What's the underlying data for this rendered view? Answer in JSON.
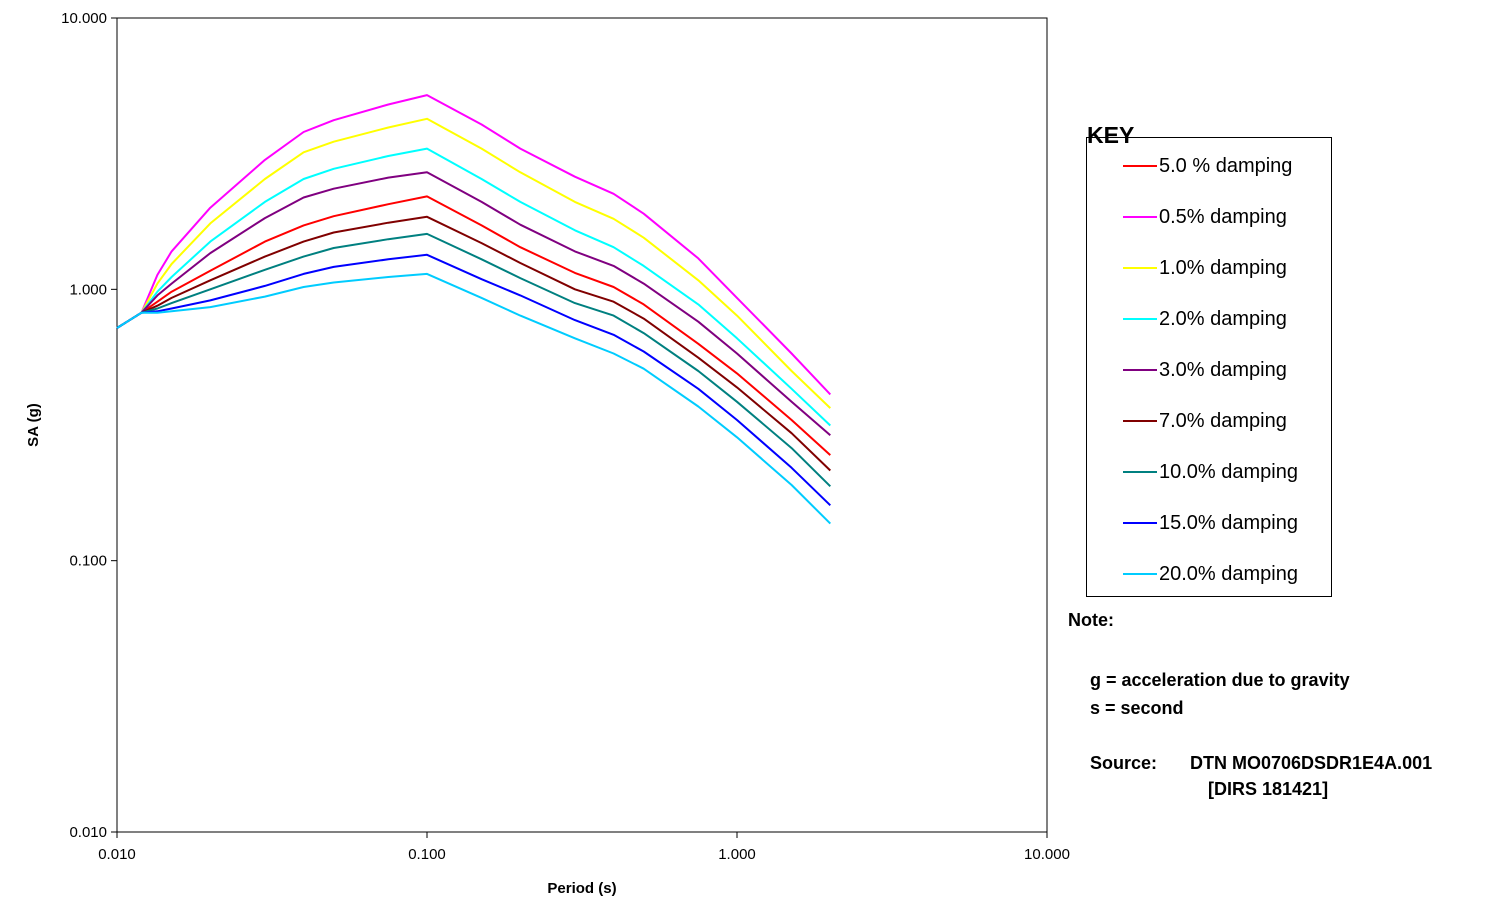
{
  "chart_data": {
    "type": "line",
    "xlabel": "Period (s)",
    "ylabel": "SA (g)",
    "xscale": "log",
    "yscale": "log",
    "xlim": [
      0.01,
      10
    ],
    "ylim": [
      0.01,
      10
    ],
    "x_ticks": [
      "0.010",
      "0.100",
      "1.000",
      "10.000"
    ],
    "y_ticks": [
      "0.010",
      "0.100",
      "1.000",
      "10.000"
    ],
    "grid": false,
    "legend_title": "KEY",
    "legend_position": "right",
    "x": [
      0.01,
      0.012,
      0.0135,
      0.015,
      0.02,
      0.03,
      0.04,
      0.05,
      0.075,
      0.1,
      0.15,
      0.2,
      0.3,
      0.4,
      0.5,
      0.75,
      1.0,
      1.5,
      2.0
    ],
    "series": [
      {
        "name": "5.0 % damping",
        "color": "#ff0000",
        "values": [
          0.72,
          0.82,
          0.9,
          0.98,
          1.17,
          1.5,
          1.72,
          1.86,
          2.06,
          2.2,
          1.72,
          1.43,
          1.15,
          1.02,
          0.88,
          0.63,
          0.49,
          0.33,
          0.245
        ]
      },
      {
        "name": "0.5% damping",
        "color": "#ff00ff",
        "values": [
          0.72,
          0.82,
          1.13,
          1.38,
          2.0,
          3.0,
          3.8,
          4.2,
          4.8,
          5.2,
          4.05,
          3.3,
          2.6,
          2.25,
          1.9,
          1.3,
          0.93,
          0.58,
          0.41
        ]
      },
      {
        "name": "1.0% damping",
        "color": "#ffff00",
        "values": [
          0.72,
          0.82,
          1.05,
          1.24,
          1.75,
          2.55,
          3.2,
          3.5,
          3.95,
          4.25,
          3.3,
          2.7,
          2.1,
          1.82,
          1.55,
          1.08,
          0.8,
          0.5,
          0.365
        ]
      },
      {
        "name": "2.0% damping",
        "color": "#00ffff",
        "values": [
          0.72,
          0.82,
          0.98,
          1.11,
          1.5,
          2.1,
          2.55,
          2.78,
          3.1,
          3.3,
          2.55,
          2.1,
          1.65,
          1.43,
          1.22,
          0.88,
          0.66,
          0.43,
          0.315
        ]
      },
      {
        "name": "3.0% damping",
        "color": "#800080",
        "values": [
          0.72,
          0.82,
          0.95,
          1.05,
          1.36,
          1.83,
          2.18,
          2.35,
          2.58,
          2.7,
          2.1,
          1.73,
          1.38,
          1.22,
          1.05,
          0.76,
          0.58,
          0.385,
          0.29
        ]
      },
      {
        "name": "7.0% damping",
        "color": "#800000",
        "values": [
          0.72,
          0.82,
          0.87,
          0.93,
          1.08,
          1.32,
          1.5,
          1.62,
          1.76,
          1.85,
          1.48,
          1.25,
          1.0,
          0.9,
          0.78,
          0.56,
          0.435,
          0.295,
          0.215
        ]
      },
      {
        "name": "10.0% damping",
        "color": "#008080",
        "values": [
          0.72,
          0.82,
          0.85,
          0.89,
          1.0,
          1.18,
          1.32,
          1.42,
          1.53,
          1.6,
          1.29,
          1.1,
          0.89,
          0.8,
          0.69,
          0.5,
          0.385,
          0.26,
          0.188
        ]
      },
      {
        "name": "15.0% damping",
        "color": "#0000ff",
        "values": [
          0.72,
          0.82,
          0.83,
          0.85,
          0.91,
          1.03,
          1.14,
          1.21,
          1.29,
          1.34,
          1.09,
          0.95,
          0.77,
          0.68,
          0.59,
          0.43,
          0.33,
          0.22,
          0.16
        ]
      },
      {
        "name": "20.0% damping",
        "color": "#00ccff",
        "values": [
          0.72,
          0.82,
          0.82,
          0.83,
          0.86,
          0.94,
          1.02,
          1.06,
          1.11,
          1.14,
          0.93,
          0.8,
          0.66,
          0.58,
          0.51,
          0.37,
          0.285,
          0.19,
          0.137
        ]
      }
    ]
  },
  "notes": {
    "title": "Note:",
    "lines": [
      "g = acceleration due to gravity",
      "s = second"
    ],
    "source_label": "Source:",
    "source_lines": [
      "DTN MO0706DSDR1E4A.001",
      "[DIRS 181421]"
    ]
  }
}
